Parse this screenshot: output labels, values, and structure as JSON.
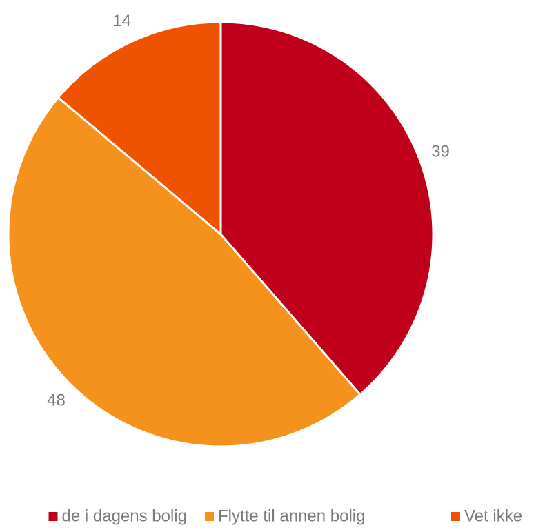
{
  "chart_data": {
    "type": "pie",
    "categories": [
      "de i dagens bolig",
      "Flytte til annen bolig",
      "Vet ikke"
    ],
    "values": [
      39,
      48,
      14
    ],
    "colors": [
      "#c0001a",
      "#f5921e",
      "#ef5300"
    ],
    "legend": "bottom"
  }
}
